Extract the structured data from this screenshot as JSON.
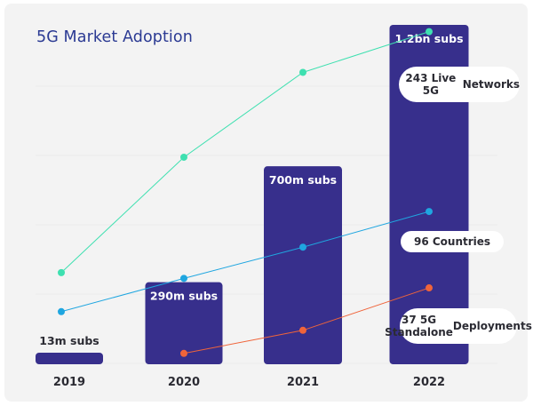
{
  "chart_data": {
    "type": "bar",
    "title": "5G Market Adoption",
    "xlabel": "",
    "ylabel": "",
    "grid": true,
    "categories": [
      "2019",
      "2020",
      "2021",
      "2022"
    ],
    "bars": {
      "name": "Subscriptions",
      "values_millions": [
        13,
        290,
        700,
        1200
      ],
      "labels": [
        "13m subs",
        "290m subs",
        "700m subs",
        "1.2bn subs"
      ],
      "color": "#372f8c",
      "label_color_inside": "#ffffff",
      "label_color_outside": "#2b2b33"
    },
    "series": [
      {
        "name": "Live 5G Networks",
        "label": "243 Live 5G Networks",
        "label_lines": [
          "243 Live 5G",
          "Networks"
        ],
        "final_value": 243,
        "color": "#3ee0b0",
        "categories": [
          "2019",
          "2020",
          "2021",
          "2022"
        ],
        "relative_values": [
          0.27,
          0.61,
          0.86,
          0.98
        ]
      },
      {
        "name": "Countries",
        "label": "96 Countries",
        "label_lines": [
          "96 Countries"
        ],
        "final_value": 96,
        "color": "#1fa6e0",
        "categories": [
          "2019",
          "2020",
          "2021",
          "2022"
        ],
        "relative_values": [
          0.155,
          0.253,
          0.345,
          0.45
        ]
      },
      {
        "name": "5G Standalone Deployments",
        "label": "37 5G Standalone Deployments",
        "label_lines": [
          "37 5G Standalone",
          "Deployments"
        ],
        "final_value": 37,
        "color": "#f0643a",
        "categories": [
          "2020",
          "2021",
          "2022"
        ],
        "relative_values": [
          0.032,
          0.1,
          0.225
        ]
      }
    ]
  }
}
